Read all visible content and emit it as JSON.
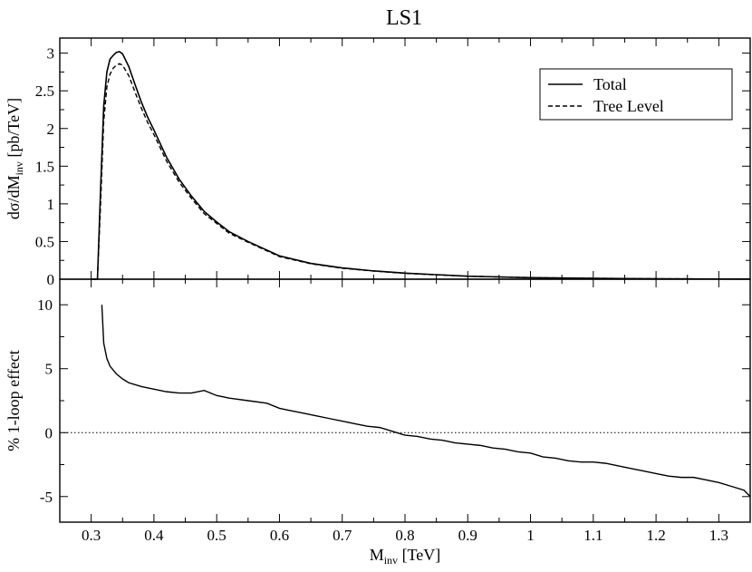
{
  "chart_data": [
    {
      "panel": "top",
      "type": "line",
      "title": "LS1",
      "ylabel": "dσ/dM",
      "ylabel_sub": "inv",
      "ylabel_unit": " [pb/TeV]",
      "xlim": [
        0.25,
        1.35
      ],
      "ylim": [
        0,
        3.2
      ],
      "yticks": [
        0,
        0.5,
        1,
        1.5,
        2,
        2.5,
        3
      ],
      "ytick_labels": [
        "0",
        "0.5",
        "1",
        "1.5",
        "2",
        "2.5",
        "3"
      ],
      "grid": false,
      "legend": {
        "placement": "top-right",
        "entries": [
          {
            "label": "Total",
            "style": "solid"
          },
          {
            "label": "Tree Level",
            "style": "dashed"
          }
        ]
      },
      "series": [
        {
          "name": "Total",
          "style": "solid",
          "color": "#000000",
          "x": [
            0.3,
            0.31,
            0.315,
            0.32,
            0.325,
            0.33,
            0.335,
            0.34,
            0.345,
            0.35,
            0.36,
            0.37,
            0.38,
            0.39,
            0.4,
            0.42,
            0.44,
            0.46,
            0.48,
            0.5,
            0.52,
            0.55,
            0.6,
            0.65,
            0.7,
            0.75,
            0.8,
            0.85,
            0.9,
            0.95,
            1.0,
            1.1,
            1.2,
            1.3,
            1.35
          ],
          "y": [
            0,
            0,
            1.2,
            2.3,
            2.75,
            2.92,
            2.97,
            3.01,
            3.02,
            2.99,
            2.82,
            2.58,
            2.35,
            2.15,
            1.98,
            1.62,
            1.33,
            1.1,
            0.9,
            0.76,
            0.63,
            0.5,
            0.31,
            0.21,
            0.15,
            0.11,
            0.08,
            0.06,
            0.04,
            0.03,
            0.02,
            0.012,
            0.006,
            0.003,
            0.002
          ]
        },
        {
          "name": "Tree Level",
          "style": "dashed",
          "color": "#000000",
          "x": [
            0.3,
            0.31,
            0.315,
            0.32,
            0.325,
            0.33,
            0.335,
            0.34,
            0.345,
            0.35,
            0.36,
            0.37,
            0.38,
            0.39,
            0.4,
            0.42,
            0.44,
            0.46,
            0.48,
            0.5,
            0.52,
            0.55,
            0.6,
            0.65,
            0.7,
            0.75,
            0.8,
            0.85,
            0.9,
            0.95,
            1.0,
            1.1,
            1.2,
            1.3,
            1.35
          ],
          "y": [
            0,
            0,
            1.0,
            2.1,
            2.55,
            2.72,
            2.8,
            2.84,
            2.86,
            2.84,
            2.7,
            2.48,
            2.27,
            2.08,
            1.92,
            1.57,
            1.29,
            1.07,
            0.87,
            0.74,
            0.61,
            0.49,
            0.3,
            0.205,
            0.145,
            0.108,
            0.078,
            0.058,
            0.04,
            0.03,
            0.02,
            0.012,
            0.006,
            0.003,
            0.002
          ]
        }
      ]
    },
    {
      "panel": "bottom",
      "type": "line",
      "ylabel": "% 1-loop effect",
      "xlabel": "M",
      "xlabel_sub": "inv",
      "xlabel_unit": " [TeV]",
      "xlim": [
        0.25,
        1.35
      ],
      "ylim": [
        -7,
        12
      ],
      "xticks": [
        0.3,
        0.4,
        0.5,
        0.6,
        0.7,
        0.8,
        0.9,
        1,
        1.1,
        1.2,
        1.3
      ],
      "xtick_labels": [
        "0.3",
        "0.4",
        "0.5",
        "0.6",
        "0.7",
        "0.8",
        "0.9",
        "1",
        "1.1",
        "1.2",
        "1.3"
      ],
      "yticks": [
        -5,
        0,
        5,
        10
      ],
      "ytick_labels": [
        "-5",
        "0",
        "5",
        "10"
      ],
      "grid": false,
      "reference_line": {
        "y": 0,
        "style": "dotted"
      },
      "series": [
        {
          "name": "",
          "style": "solid",
          "color": "#000000",
          "x": [
            0.317,
            0.32,
            0.325,
            0.33,
            0.34,
            0.35,
            0.36,
            0.38,
            0.4,
            0.42,
            0.44,
            0.46,
            0.48,
            0.5,
            0.52,
            0.55,
            0.58,
            0.6,
            0.62,
            0.64,
            0.66,
            0.68,
            0.7,
            0.72,
            0.74,
            0.76,
            0.78,
            0.8,
            0.82,
            0.84,
            0.86,
            0.88,
            0.9,
            0.92,
            0.94,
            0.96,
            0.98,
            1.0,
            1.02,
            1.04,
            1.06,
            1.08,
            1.1,
            1.12,
            1.14,
            1.16,
            1.18,
            1.2,
            1.22,
            1.24,
            1.26,
            1.28,
            1.3,
            1.32,
            1.34,
            1.35
          ],
          "y": [
            10.0,
            7.0,
            5.8,
            5.2,
            4.6,
            4.2,
            3.9,
            3.6,
            3.4,
            3.2,
            3.1,
            3.1,
            3.3,
            2.9,
            2.7,
            2.5,
            2.3,
            1.9,
            1.7,
            1.5,
            1.3,
            1.1,
            0.9,
            0.7,
            0.5,
            0.4,
            0.1,
            -0.2,
            -0.3,
            -0.5,
            -0.6,
            -0.8,
            -0.9,
            -1.0,
            -1.2,
            -1.3,
            -1.5,
            -1.6,
            -1.9,
            -2.0,
            -2.2,
            -2.3,
            -2.3,
            -2.4,
            -2.6,
            -2.8,
            -3.0,
            -3.2,
            -3.4,
            -3.5,
            -3.5,
            -3.7,
            -3.9,
            -4.2,
            -4.5,
            -5.0
          ]
        }
      ]
    }
  ]
}
